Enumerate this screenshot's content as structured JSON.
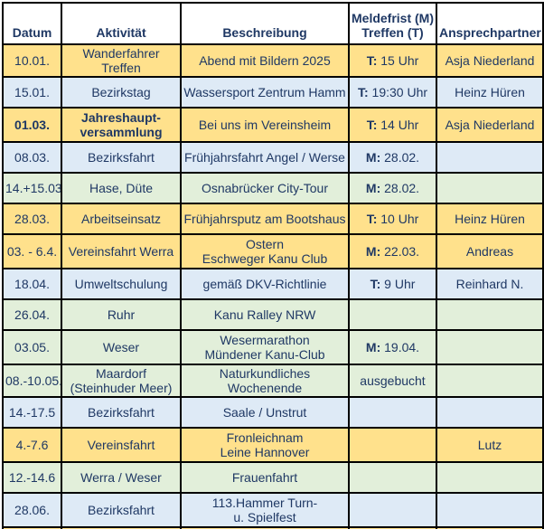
{
  "colors": {
    "yellow": "#FFE18C",
    "blue": "#DEEAF6",
    "green": "#E2EFDA",
    "header": "#FFFFFF",
    "text": "#1F3864",
    "border": "#000000"
  },
  "table": {
    "columns": [
      {
        "label": "Datum"
      },
      {
        "label": "Aktivität"
      },
      {
        "label": "Beschreibung"
      },
      {
        "label": "Meldefrist (M)\nTreffen (T)"
      },
      {
        "label": "Ansprechpartner"
      }
    ],
    "rows": [
      {
        "datum": "10.01.",
        "aktivitaet": "Wanderfahrer Treffen",
        "beschreibung": "Abend mit Bildern 2025",
        "frist_prefix": "T:",
        "frist_text": "15 Uhr",
        "ansprechpartner": "Asja Niederland",
        "bg": "yellow",
        "bold": false
      },
      {
        "datum": "15.01.",
        "aktivitaet": "Bezirkstag",
        "beschreibung": "Wassersport Zentrum Hamm",
        "frist_prefix": "T:",
        "frist_text": "19:30 Uhr",
        "ansprechpartner": "Heinz Hüren",
        "bg": "blue",
        "bold": false
      },
      {
        "datum": "01.03.",
        "aktivitaet": "Jahreshaupt-\nversammlung",
        "beschreibung": "Bei uns im Vereinsheim",
        "frist_prefix": "T:",
        "frist_text": "14 Uhr",
        "ansprechpartner": "Asja Niederland",
        "bg": "yellow",
        "bold": true
      },
      {
        "datum": "08.03.",
        "aktivitaet": "Bezirksfahrt",
        "beschreibung": "Frühjahrsfahrt Angel / Werse",
        "frist_prefix": "M:",
        "frist_text": "28.02.",
        "ansprechpartner": "",
        "bg": "blue",
        "bold": false
      },
      {
        "datum": "14.+15.03",
        "aktivitaet": "Hase, Düte",
        "beschreibung": "Osnabrücker City-Tour",
        "frist_prefix": "M:",
        "frist_text": "28.02.",
        "ansprechpartner": "",
        "bg": "green",
        "bold": false
      },
      {
        "datum": "28.03.",
        "aktivitaet": "Arbeitseinsatz",
        "beschreibung": "Frühjahrsputz am Bootshaus",
        "frist_prefix": "T:",
        "frist_text": "10 Uhr",
        "ansprechpartner": "Heinz Hüren",
        "bg": "yellow",
        "bold": false
      },
      {
        "datum": "03. - 6.4.",
        "aktivitaet": "Vereinsfahrt Werra",
        "beschreibung": "Ostern\nEschweger Kanu Club",
        "frist_prefix": "M:",
        "frist_text": "22.03.",
        "ansprechpartner": "Andreas",
        "bg": "yellow",
        "bold": false
      },
      {
        "datum": "18.04.",
        "aktivitaet": "Umweltschulung",
        "beschreibung": "gemäß DKV-Richtlinie",
        "frist_prefix": "T:",
        "frist_text": "9 Uhr",
        "ansprechpartner": "Reinhard N.",
        "bg": "blue",
        "bold": false
      },
      {
        "datum": "26.04.",
        "aktivitaet": "Ruhr",
        "beschreibung": "Kanu Ralley NRW",
        "frist_prefix": "",
        "frist_text": "",
        "ansprechpartner": "",
        "bg": "green",
        "bold": false
      },
      {
        "datum": "03.05.",
        "aktivitaet": "Weser",
        "beschreibung": "Wesermarathon\nMündener Kanu-Club",
        "frist_prefix": "M:",
        "frist_text": "19.04.",
        "ansprechpartner": "",
        "bg": "green",
        "bold": false
      },
      {
        "datum": "08.-10.05.",
        "aktivitaet": "Maardorf (Steinhuder Meer)",
        "beschreibung": "Naturkundliches Wochenende",
        "frist_prefix": "",
        "frist_text": "ausgebucht",
        "ansprechpartner": "",
        "bg": "green",
        "bold": false
      },
      {
        "datum": "14.-17.5",
        "aktivitaet": "Bezirksfahrt",
        "beschreibung": "Saale / Unstrut",
        "frist_prefix": "",
        "frist_text": "",
        "ansprechpartner": "",
        "bg": "blue",
        "bold": false
      },
      {
        "datum": "4.-7.6",
        "aktivitaet": "Vereinsfahrt",
        "beschreibung": "Fronleichnam\nLeine Hannover",
        "frist_prefix": "",
        "frist_text": "",
        "ansprechpartner": "Lutz",
        "bg": "yellow",
        "bold": false
      },
      {
        "datum": "12.-14.6",
        "aktivitaet": "Werra / Weser",
        "beschreibung": "Frauenfahrt",
        "frist_prefix": "",
        "frist_text": "",
        "ansprechpartner": "",
        "bg": "green",
        "bold": false
      },
      {
        "datum": "28.06.",
        "aktivitaet": "Bezirksfahrt",
        "beschreibung": "113.Hammer Turn-\nu. Spielfest",
        "frist_prefix": "",
        "frist_text": "",
        "ansprechpartner": "",
        "bg": "blue",
        "bold": false
      },
      {
        "partial": true,
        "bg": "yellow"
      }
    ]
  }
}
